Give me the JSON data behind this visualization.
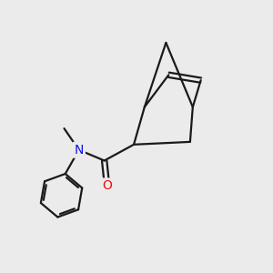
{
  "background_color": "#ebebeb",
  "bond_color": "#1a1a1a",
  "nitrogen_color": "#1010ee",
  "oxygen_color": "#ee1010",
  "line_width": 1.6,
  "figsize": [
    3.0,
    3.0
  ],
  "dpi": 100
}
